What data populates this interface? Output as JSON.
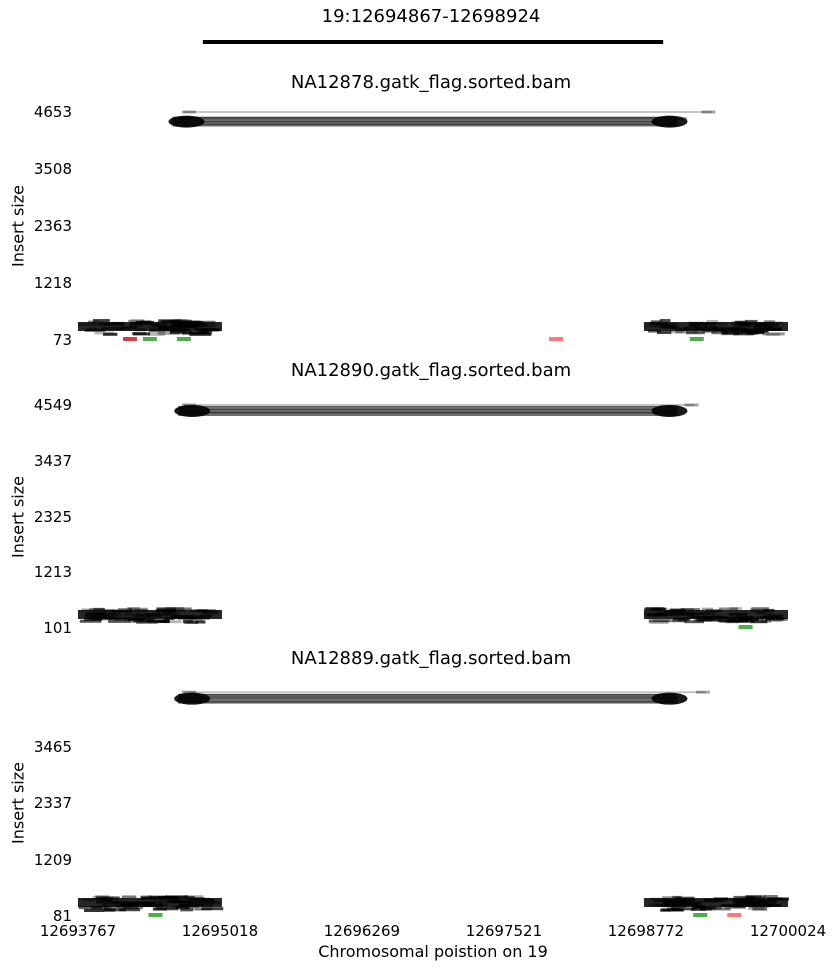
{
  "region_title": "19:12694867-12698924",
  "chart_data": {
    "type": "scatter",
    "xlabel": "Chromosomal poistion on 19",
    "xticks": [
      "12693767",
      "12695018",
      "12696269",
      "12697521",
      "12698772",
      "12700024"
    ],
    "xlim": [
      12693767,
      12700024
    ],
    "region": [
      12694867,
      12698924
    ],
    "panels": [
      {
        "title": "NA12878.gatk_flag.sorted.bam",
        "ylabel": "Insert size",
        "yticks": [
          "4653",
          "3508",
          "2363",
          "1218",
          "73"
        ],
        "ylim": [
          73,
          4653
        ],
        "colors": {
          "pair": "#000000",
          "red": "#cc2020",
          "green": "#2ca02c",
          "pink": "#ff6060"
        },
        "read_pairs": [
          {
            "x": [
              12694600,
              12699050
            ],
            "y": 4460,
            "weight": 1.0
          },
          {
            "x": [
              12694650,
              12699100
            ],
            "y": 4520,
            "weight": 0.5
          },
          {
            "x": [
              12694700,
              12699350
            ],
            "y": 4653,
            "weight": 0.3
          }
        ],
        "discordant": [
          {
            "x": 12694225,
            "y": 70,
            "color": "red"
          },
          {
            "x": 12694400,
            "y": 75,
            "color": "green"
          },
          {
            "x": 12694700,
            "y": 75,
            "color": "green"
          },
          {
            "x": 12697980,
            "y": 55,
            "color": "pink"
          },
          {
            "x": 12699220,
            "y": 70,
            "color": "green"
          }
        ]
      },
      {
        "title": "NA12890.gatk_flag.sorted.bam",
        "ylabel": "Insert size",
        "yticks": [
          "4549",
          "3437",
          "2325",
          "1213",
          "101"
        ],
        "ylim": [
          101,
          4549
        ],
        "colors": {
          "pair": "#000000",
          "red": "#cc2020",
          "green": "#2ca02c",
          "pink": "#ff6060"
        },
        "read_pairs": [
          {
            "x": [
              12694650,
              12699050
            ],
            "y": 4430,
            "weight": 1.0
          },
          {
            "x": [
              12694700,
              12699200
            ],
            "y": 4549,
            "weight": 0.3
          }
        ],
        "discordant": [
          {
            "x": 12699650,
            "y": 200,
            "color": "green"
          }
        ]
      },
      {
        "title": "NA12889.gatk_flag.sorted.bam",
        "ylabel": "Insert size",
        "yticks": [
          "3465",
          "2337",
          "1209",
          "81"
        ],
        "ylim": [
          81,
          4593
        ],
        "colors": {
          "pair": "#000000",
          "red": "#cc2020",
          "green": "#2ca02c",
          "pink": "#ff6060"
        },
        "read_pairs": [
          {
            "x": [
              12694650,
              12699050
            ],
            "y": 4420,
            "weight": 1.0
          },
          {
            "x": [
              12694700,
              12699300
            ],
            "y": 4550,
            "weight": 0.3
          }
        ],
        "discordant": [
          {
            "x": 12694450,
            "y": 250,
            "color": "green"
          },
          {
            "x": 12699250,
            "y": 260,
            "color": "green"
          },
          {
            "x": 12699550,
            "y": 240,
            "color": "pink"
          }
        ]
      }
    ]
  }
}
